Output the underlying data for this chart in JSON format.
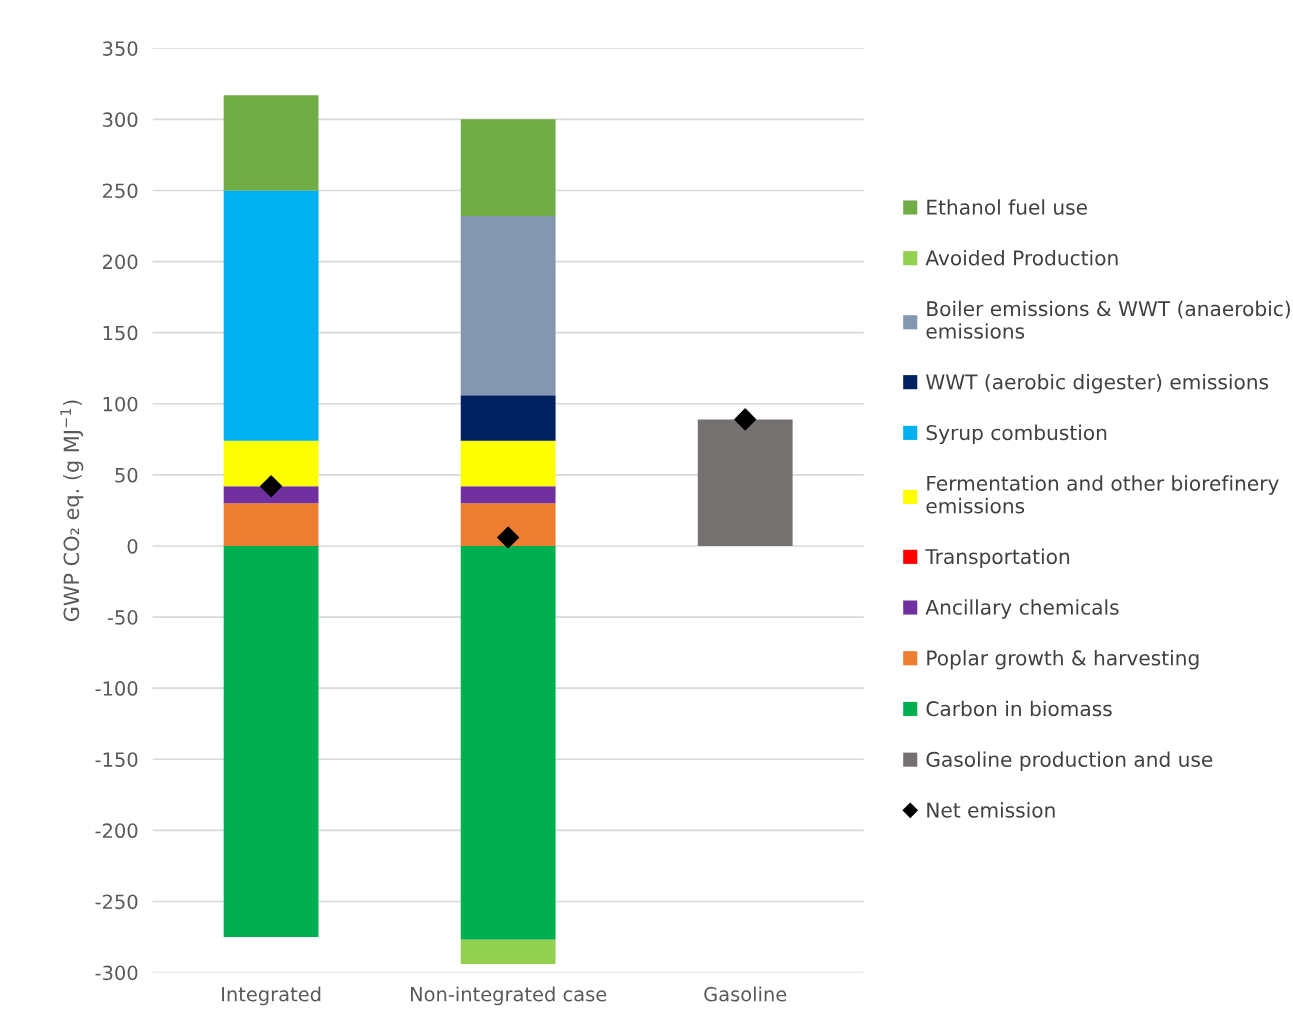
{
  "chart_data": {
    "type": "bar",
    "stacked": true,
    "ylabel": "GWP CO₂ eq. (g MJ$^{−1}$)",
    "categories": [
      "Integrated",
      "Non-integrated case",
      "Gasoline"
    ],
    "ylim": [
      -300,
      350
    ],
    "yticks": [
      -300,
      -250,
      -200,
      -150,
      -100,
      -50,
      0,
      50,
      100,
      150,
      200,
      250,
      300,
      350
    ],
    "grid": "y",
    "legend": "right",
    "series": [
      {
        "name": "Net emission",
        "type": "scatter",
        "marker": "diamond",
        "color": "#000000",
        "values": [
          42,
          6,
          89
        ]
      },
      {
        "name": "Gasoline production and use",
        "color": "#767171",
        "values": [
          null,
          null,
          89
        ]
      },
      {
        "name": "Carbon in biomass",
        "color": "#00b050",
        "values": [
          -275,
          -277,
          null
        ]
      },
      {
        "name": "Poplar growth & harvesting",
        "color": "#ed7d31",
        "values": [
          30,
          30,
          null
        ]
      },
      {
        "name": "Ancillary chemicals",
        "color": "#7030a0",
        "values": [
          12,
          12,
          null
        ]
      },
      {
        "name": "Transportation",
        "color": "#ff0000",
        "values": [
          0,
          0,
          null
        ]
      },
      {
        "name": "Fermentation and other biorefinery emissions",
        "color": "#ffff00",
        "values": [
          32,
          32,
          null
        ]
      },
      {
        "name": "Syrup combustion",
        "color": "#00b0f0",
        "values": [
          176,
          null,
          null
        ]
      },
      {
        "name": "WWT (aerobic digester) emissions",
        "color": "#002060",
        "values": [
          null,
          32,
          null
        ]
      },
      {
        "name": "Boiler emissions & WWT (anaerobic) emissions",
        "color": "#8497b0",
        "values": [
          null,
          126,
          null
        ]
      },
      {
        "name": "Avoided Production",
        "color": "#92d050",
        "values": [
          null,
          -17,
          null
        ]
      },
      {
        "name": "Ethanol fuel use",
        "color": "#70ad47",
        "values": [
          67,
          68,
          null
        ]
      }
    ]
  }
}
